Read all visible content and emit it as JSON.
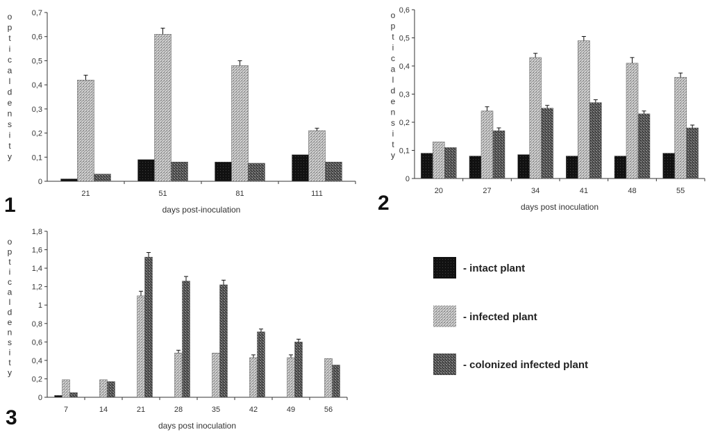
{
  "legend": [
    {
      "label": "- intact plant",
      "pattern": "intact"
    },
    {
      "label": "- infected plant",
      "pattern": "infected"
    },
    {
      "label": "- colonized infected plant",
      "pattern": "colonized"
    }
  ],
  "chart_data": [
    {
      "type": "bar",
      "panel_label": "1",
      "xlabel": "days post-inoculation",
      "ylabel": "optical density",
      "categories": [
        "21",
        "51",
        "81",
        "111"
      ],
      "yticks": [
        "0",
        "0,1",
        "0,2",
        "0,3",
        "0,4",
        "0,5",
        "0,6",
        "0,7"
      ],
      "ylim": [
        0,
        0.7
      ],
      "series": [
        {
          "name": "intact plant",
          "values": [
            0.01,
            0.09,
            0.08,
            0.11
          ]
        },
        {
          "name": "infected plant",
          "values": [
            0.42,
            0.61,
            0.48,
            0.21
          ]
        },
        {
          "name": "colonized infected plant",
          "values": [
            0.03,
            0.08,
            0.075,
            0.08
          ]
        }
      ],
      "errors": [
        [
          0,
          0,
          0,
          0
        ],
        [
          0.02,
          0.025,
          0.02,
          0.01
        ],
        [
          0,
          0,
          0,
          0
        ]
      ]
    },
    {
      "type": "bar",
      "panel_label": "2",
      "xlabel": "days post inoculation",
      "ylabel": "optical density",
      "categories": [
        "20",
        "27",
        "34",
        "41",
        "48",
        "55"
      ],
      "yticks": [
        "0",
        "0,1",
        "0,2",
        "0,3",
        "0,4",
        "0,5",
        "0,6"
      ],
      "ylim": [
        0,
        0.6
      ],
      "series": [
        {
          "name": "intact plant",
          "values": [
            0.09,
            0.08,
            0.085,
            0.08,
            0.08,
            0.09
          ]
        },
        {
          "name": "infected plant",
          "values": [
            0.13,
            0.24,
            0.43,
            0.49,
            0.41,
            0.36
          ]
        },
        {
          "name": "colonized infected plant",
          "values": [
            0.11,
            0.17,
            0.25,
            0.27,
            0.23,
            0.18
          ]
        }
      ],
      "errors": [
        [
          0,
          0,
          0,
          0,
          0,
          0
        ],
        [
          0,
          0.015,
          0.015,
          0.015,
          0.02,
          0.015
        ],
        [
          0,
          0.01,
          0.01,
          0.01,
          0.01,
          0.01
        ]
      ]
    },
    {
      "type": "bar",
      "panel_label": "3",
      "xlabel": "days post inoculation",
      "ylabel": "optical density",
      "categories": [
        "7",
        "14",
        "21",
        "28",
        "35",
        "42",
        "49",
        "56"
      ],
      "yticks": [
        "0",
        "0,2",
        "0,4",
        "0,6",
        "0,8",
        "1",
        "1,2",
        "1,4",
        "1,6",
        "1,8"
      ],
      "ylim": [
        0,
        1.8
      ],
      "series": [
        {
          "name": "intact plant",
          "values": [
            0.02,
            0,
            0,
            0,
            0,
            0,
            0,
            0
          ]
        },
        {
          "name": "infected plant",
          "values": [
            0.19,
            0.19,
            1.1,
            0.48,
            0.48,
            0.43,
            0.43,
            0.42
          ]
        },
        {
          "name": "colonized infected plant",
          "values": [
            0.05,
            0.17,
            1.52,
            1.26,
            1.22,
            0.71,
            0.6,
            0.35
          ]
        }
      ],
      "errors": [
        [
          0,
          0,
          0,
          0,
          0,
          0,
          0,
          0
        ],
        [
          0,
          0,
          0.05,
          0.03,
          0,
          0.03,
          0.03,
          0
        ],
        [
          0,
          0,
          0.05,
          0.05,
          0.05,
          0.03,
          0.03,
          0
        ]
      ]
    }
  ]
}
